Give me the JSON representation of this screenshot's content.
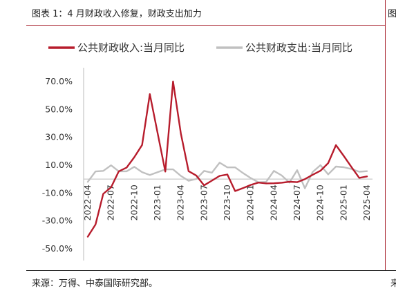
{
  "figure": {
    "title": "图表 1：4 月财政收入修复，财政支出加力",
    "source": "来源：万得、中泰国际研究部。",
    "right_edge_title": "图",
    "right_edge_footer": "来"
  },
  "chart_data": {
    "type": "line",
    "title": "",
    "xlabel": "",
    "ylabel": "",
    "ylim": [
      -50,
      70
    ],
    "yticks": [
      70,
      50,
      30,
      10,
      -10,
      -30,
      -50
    ],
    "ytick_labels": [
      "70.0%",
      "50.0%",
      "30.0%",
      "10.0%",
      "-10.0%",
      "-30.0%",
      "-50.0%"
    ],
    "x": [
      "2022-04",
      "2022-05",
      "2022-06",
      "2022-07",
      "2022-08",
      "2022-09",
      "2022-10",
      "2022-11",
      "2022-12",
      "2023-01",
      "2023-02",
      "2023-03",
      "2023-04",
      "2023-05",
      "2023-06",
      "2023-07",
      "2023-08",
      "2023-09",
      "2023-10",
      "2023-11",
      "2023-12",
      "2024-01",
      "2024-02",
      "2024-03",
      "2024-04",
      "2024-05",
      "2024-06",
      "2024-07",
      "2024-08",
      "2024-09",
      "2024-10",
      "2024-11",
      "2024-12",
      "2025-01",
      "2025-02",
      "2025-03",
      "2025-04"
    ],
    "xtick_labels": [
      "2022-04",
      "2022-07",
      "2022-10",
      "2023-01",
      "2023-04",
      "2023-07",
      "2023-10",
      "2024-01",
      "2024-04",
      "2024-07",
      "2024-10",
      "2025-01",
      "2025-04"
    ],
    "legend_position": "top",
    "grid": false,
    "series": [
      {
        "name": "公共财政收入:当月同比",
        "color": "#b71c2c",
        "values": [
          -41.3,
          -32.6,
          -10.6,
          -5.9,
          5.6,
          8.2,
          15.7,
          24.5,
          61.0,
          null,
          5.4,
          70.1,
          32.7,
          5.7,
          2.5,
          -4.5,
          -1.1,
          2.3,
          3.3,
          -8.6,
          -6.5,
          -4.2,
          -2.5,
          -3.1,
          -3.0,
          -2.6,
          -1.9,
          -2.2,
          0.0,
          3.1,
          6.0,
          11.5,
          24.4,
          16.7,
          8.6,
          0.9,
          1.9
        ]
      },
      {
        "name": "公共财政支出:当月同比",
        "color": "#c0c0c0",
        "values": [
          -2.0,
          5.5,
          5.9,
          9.9,
          5.6,
          5.6,
          8.8,
          5.0,
          2.9,
          null,
          7.0,
          7.0,
          2.3,
          -1.2,
          0.1,
          5.9,
          4.6,
          11.8,
          8.4,
          8.4,
          4.4,
          0.8,
          -2.3,
          -2.0,
          5.9,
          2.6,
          -2.5,
          6.4,
          -6.6,
          5.1,
          10.0,
          3.4,
          9.0,
          8.5,
          7.2,
          5.3,
          5.7
        ]
      }
    ]
  }
}
